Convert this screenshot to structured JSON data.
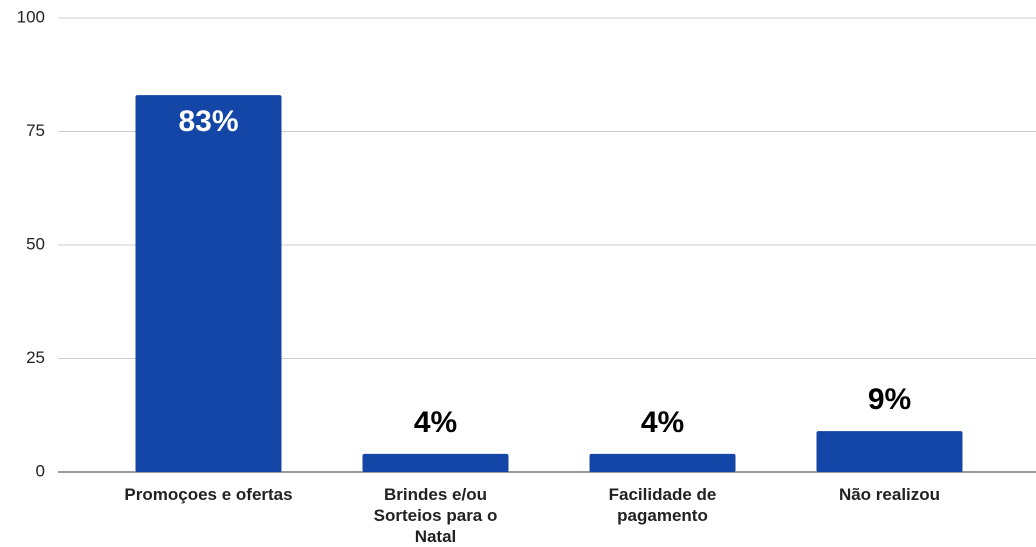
{
  "chart_data": {
    "type": "bar",
    "categories": [
      "Promoçoes e ofertas",
      "Brindes e/ou Sorteios para o Natal",
      "Facilidade de pagamento",
      "Não realizou"
    ],
    "values": [
      83,
      4,
      4,
      9
    ],
    "value_labels": [
      "83%",
      "4%",
      "4%",
      "9%"
    ],
    "color": "#1346a6",
    "ylim": [
      0,
      100
    ],
    "yticks": [
      0,
      25,
      50,
      75,
      100
    ],
    "grid": true
  }
}
